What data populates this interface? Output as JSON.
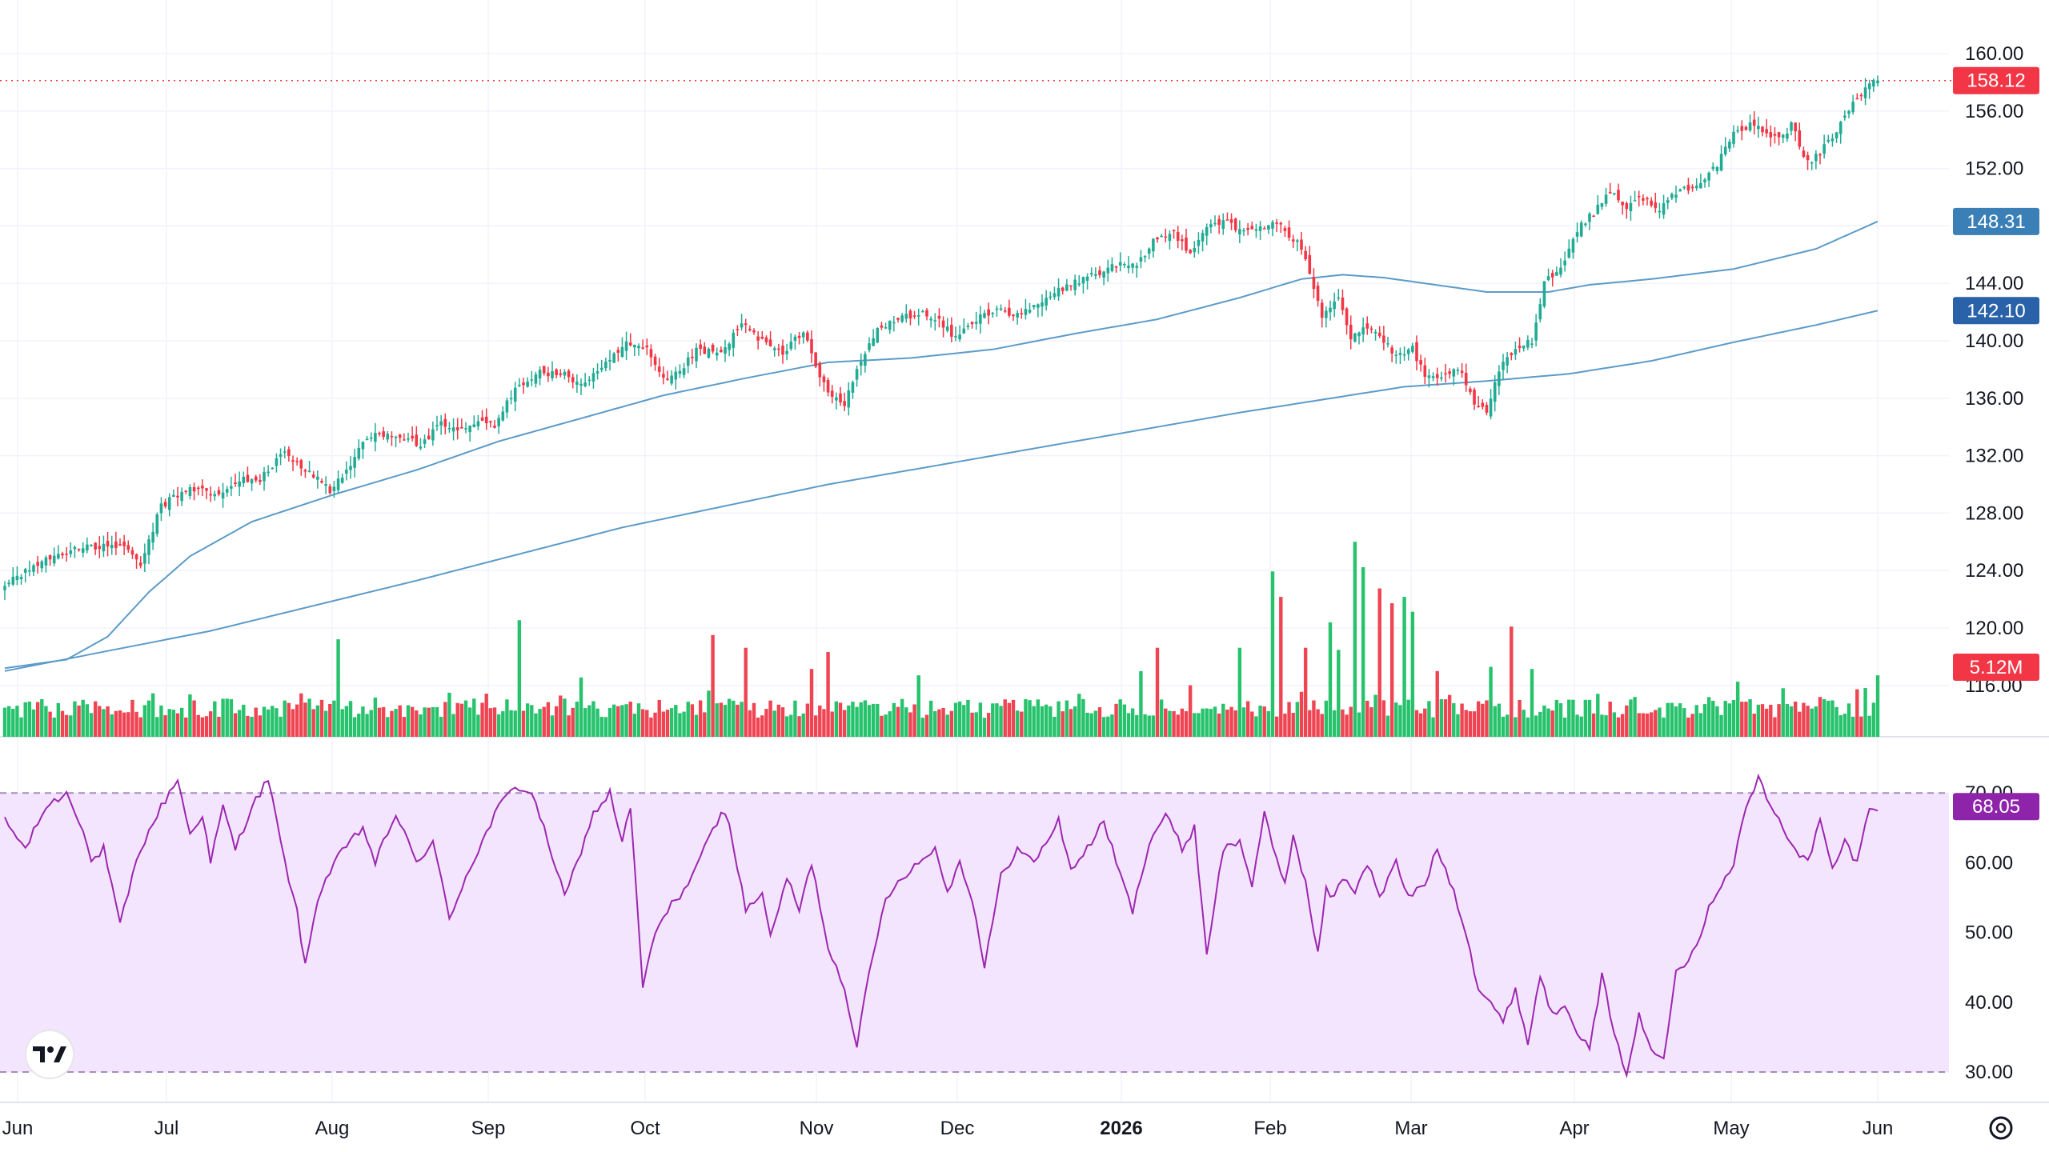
{
  "chart_data": {
    "type": "candlestick",
    "colors": {
      "up": "#22ab94",
      "down": "#f23645",
      "volume_up": "#26c26c",
      "volume_down": "#ef4452",
      "ma": "#5b9bc8",
      "ma_badge_50": "#3a7fb5",
      "ma_badge_200": "#2962a8",
      "price_badge": "#f23645",
      "rsi_line": "#9c27b0",
      "rsi_band": "#f3e5fd",
      "rsi_badge": "#8e24aa",
      "grid": "#f0f3fa",
      "axis_text": "#131722"
    },
    "price_axis": {
      "range": [
        114,
        162
      ],
      "ticks": [
        "160.00",
        "156.00",
        "152.00",
        "148.00",
        "144.00",
        "140.00",
        "136.00",
        "132.00",
        "128.00",
        "124.00",
        "120.00",
        "116.00"
      ]
    },
    "rsi_axis": {
      "range": [
        29,
        75
      ],
      "ticks": [
        "70.00",
        "60.00",
        "50.00",
        "40.00",
        "30.00"
      ],
      "band": [
        30,
        70
      ]
    },
    "time_axis": {
      "labels": [
        {
          "text": "Jun",
          "bold": false
        },
        {
          "text": "Jul",
          "bold": false
        },
        {
          "text": "Aug",
          "bold": false
        },
        {
          "text": "Sep",
          "bold": false
        },
        {
          "text": "Oct",
          "bold": false
        },
        {
          "text": "Nov",
          "bold": false
        },
        {
          "text": "Dec",
          "bold": false
        },
        {
          "text": "2026",
          "bold": true
        },
        {
          "text": "Feb",
          "bold": false
        },
        {
          "text": "Mar",
          "bold": false
        },
        {
          "text": "Apr",
          "bold": false
        },
        {
          "text": "May",
          "bold": false
        },
        {
          "text": "Jun",
          "bold": false
        }
      ]
    },
    "badges": {
      "last_price": "158.12",
      "ma_50": "148.31",
      "ma_200": "142.10",
      "volume": "5.12M",
      "rsi": "68.05"
    },
    "anchors": [
      [
        0,
        123
      ],
      [
        8,
        124.5
      ],
      [
        16,
        125.5
      ],
      [
        22,
        125.6
      ],
      [
        28,
        125.8
      ],
      [
        33,
        124.4
      ],
      [
        38,
        128.5
      ],
      [
        45,
        129.8
      ],
      [
        52,
        129.2
      ],
      [
        58,
        130.4
      ],
      [
        62,
        130.3
      ],
      [
        68,
        132.3
      ],
      [
        73,
        131.0
      ],
      [
        77,
        130.2
      ],
      [
        79,
        129.6
      ],
      [
        83,
        130.8
      ],
      [
        87,
        133.0
      ],
      [
        91,
        133.6
      ],
      [
        96,
        133.4
      ],
      [
        101,
        132.7
      ],
      [
        106,
        134.2
      ],
      [
        110,
        133.6
      ],
      [
        115,
        134.4
      ],
      [
        119,
        134.0
      ],
      [
        124,
        136.8
      ],
      [
        130,
        137.8
      ],
      [
        136,
        137.6
      ],
      [
        140,
        137.0
      ],
      [
        145,
        138.0
      ],
      [
        151,
        139.8
      ],
      [
        156,
        139.3
      ],
      [
        160,
        137.2
      ],
      [
        163,
        137.6
      ],
      [
        168,
        139.3
      ],
      [
        174,
        139.1
      ],
      [
        179,
        141.2
      ],
      [
        184,
        140.0
      ],
      [
        189,
        139.0
      ],
      [
        194,
        140.8
      ],
      [
        197,
        138.2
      ],
      [
        201,
        136.0
      ],
      [
        204,
        135.5
      ],
      [
        207,
        138.0
      ],
      [
        212,
        140.8
      ],
      [
        217,
        141.5
      ],
      [
        222,
        142.0
      ],
      [
        227,
        141.3
      ],
      [
        231,
        140.2
      ],
      [
        236,
        141.5
      ],
      [
        241,
        142.3
      ],
      [
        246,
        141.7
      ],
      [
        251,
        142.5
      ],
      [
        256,
        143.5
      ],
      [
        261,
        144.2
      ],
      [
        266,
        144.8
      ],
      [
        271,
        145.3
      ],
      [
        275,
        145.1
      ],
      [
        279,
        147.0
      ],
      [
        284,
        147.5
      ],
      [
        288,
        146.2
      ],
      [
        292,
        148.0
      ],
      [
        296,
        148.4
      ],
      [
        300,
        147.6
      ],
      [
        304,
        147.8
      ],
      [
        309,
        148.3
      ],
      [
        312,
        147.2
      ],
      [
        314,
        146.8
      ],
      [
        317,
        144.8
      ],
      [
        320,
        141.8
      ],
      [
        324,
        143.2
      ],
      [
        327,
        140.2
      ],
      [
        330,
        141.0
      ],
      [
        334,
        140.4
      ],
      [
        338,
        138.8
      ],
      [
        342,
        139.5
      ],
      [
        345,
        137.4
      ],
      [
        349,
        137.3
      ],
      [
        353,
        138.2
      ],
      [
        357,
        135.5
      ],
      [
        360,
        135.1
      ],
      [
        363,
        137.9
      ],
      [
        367,
        139.5
      ],
      [
        371,
        140.0
      ],
      [
        374,
        144.2
      ],
      [
        378,
        145.0
      ],
      [
        382,
        147.8
      ],
      [
        386,
        148.9
      ],
      [
        390,
        150.5
      ],
      [
        394,
        149.3
      ],
      [
        398,
        150.0
      ],
      [
        402,
        149.0
      ],
      [
        405,
        150.2
      ],
      [
        409,
        150.7
      ],
      [
        413,
        151.3
      ],
      [
        416,
        152.3
      ],
      [
        420,
        154.3
      ],
      [
        424,
        155.0
      ],
      [
        428,
        154.6
      ],
      [
        431,
        154.0
      ],
      [
        434,
        155.0
      ],
      [
        437,
        153.0
      ],
      [
        439,
        152.6
      ],
      [
        443,
        153.8
      ],
      [
        446,
        155.2
      ],
      [
        449,
        156.6
      ],
      [
        452,
        157.5
      ],
      [
        455,
        158.12
      ]
    ],
    "ma_50": [
      [
        0,
        117.2
      ],
      [
        15,
        117.8
      ],
      [
        25,
        119.4
      ],
      [
        35,
        122.5
      ],
      [
        45,
        125.0
      ],
      [
        60,
        127.4
      ],
      [
        80,
        129.3
      ],
      [
        100,
        131.0
      ],
      [
        120,
        133.0
      ],
      [
        140,
        134.6
      ],
      [
        160,
        136.2
      ],
      [
        180,
        137.4
      ],
      [
        200,
        138.5
      ],
      [
        220,
        138.8
      ],
      [
        240,
        139.4
      ],
      [
        260,
        140.5
      ],
      [
        280,
        141.5
      ],
      [
        300,
        143.0
      ],
      [
        315,
        144.3
      ],
      [
        325,
        144.6
      ],
      [
        335,
        144.4
      ],
      [
        345,
        144.0
      ],
      [
        360,
        143.4
      ],
      [
        375,
        143.4
      ],
      [
        385,
        143.9
      ],
      [
        400,
        144.3
      ],
      [
        420,
        145.0
      ],
      [
        440,
        146.4
      ],
      [
        455,
        148.31
      ]
    ],
    "ma_200": [
      [
        0,
        117.0
      ],
      [
        50,
        119.8
      ],
      [
        100,
        123.3
      ],
      [
        150,
        127.0
      ],
      [
        200,
        130.0
      ],
      [
        250,
        132.5
      ],
      [
        300,
        135.0
      ],
      [
        340,
        136.8
      ],
      [
        360,
        137.2
      ],
      [
        380,
        137.7
      ],
      [
        400,
        138.6
      ],
      [
        420,
        139.9
      ],
      [
        440,
        141.1
      ],
      [
        455,
        142.1
      ]
    ],
    "volume_spikes": [
      [
        81,
        4.6
      ],
      [
        125,
        5.5
      ],
      [
        140,
        2.8
      ],
      [
        172,
        4.8
      ],
      [
        180,
        4.2
      ],
      [
        196,
        3.2
      ],
      [
        200,
        4.0
      ],
      [
        222,
        2.9
      ],
      [
        276,
        3.1
      ],
      [
        280,
        4.2
      ],
      [
        300,
        4.2
      ],
      [
        308,
        7.8
      ],
      [
        310,
        6.6
      ],
      [
        316,
        4.2
      ],
      [
        322,
        5.4
      ],
      [
        324,
        4.1
      ],
      [
        328,
        9.2
      ],
      [
        330,
        8.0
      ],
      [
        334,
        7.0
      ],
      [
        337,
        6.3
      ],
      [
        340,
        6.6
      ],
      [
        342,
        5.9
      ],
      [
        348,
        3.1
      ],
      [
        361,
        3.3
      ],
      [
        366,
        5.2
      ],
      [
        371,
        3.2
      ],
      [
        421,
        2.6
      ],
      [
        443,
        1.7
      ],
      [
        452,
        2.3
      ],
      [
        455,
        2.9
      ]
    ],
    "rsi_anchors": [
      [
        0,
        66
      ],
      [
        5,
        62
      ],
      [
        10,
        68
      ],
      [
        15,
        70
      ],
      [
        19,
        65
      ],
      [
        21,
        60
      ],
      [
        24,
        62
      ],
      [
        28,
        51
      ],
      [
        31,
        58
      ],
      [
        33,
        62
      ],
      [
        38,
        68
      ],
      [
        42,
        72
      ],
      [
        45,
        64
      ],
      [
        48,
        67
      ],
      [
        50,
        60
      ],
      [
        53,
        68
      ],
      [
        56,
        62
      ],
      [
        60,
        68
      ],
      [
        64,
        72
      ],
      [
        68,
        60
      ],
      [
        71,
        53
      ],
      [
        73,
        45
      ],
      [
        76,
        55
      ],
      [
        80,
        60
      ],
      [
        84,
        63
      ],
      [
        87,
        65
      ],
      [
        90,
        60
      ],
      [
        95,
        67
      ],
      [
        100,
        60
      ],
      [
        104,
        63
      ],
      [
        108,
        52
      ],
      [
        112,
        58
      ],
      [
        116,
        63
      ],
      [
        120,
        68
      ],
      [
        124,
        71
      ],
      [
        128,
        70
      ],
      [
        132,
        63
      ],
      [
        136,
        55
      ],
      [
        139,
        60
      ],
      [
        143,
        67
      ],
      [
        147,
        70
      ],
      [
        150,
        63
      ],
      [
        152,
        68
      ],
      [
        155,
        42
      ],
      [
        158,
        50
      ],
      [
        162,
        54
      ],
      [
        165,
        56
      ],
      [
        170,
        62
      ],
      [
        174,
        67
      ],
      [
        176,
        66
      ],
      [
        180,
        53
      ],
      [
        184,
        56
      ],
      [
        186,
        49
      ],
      [
        190,
        58
      ],
      [
        193,
        53
      ],
      [
        196,
        60
      ],
      [
        200,
        48
      ],
      [
        204,
        42
      ],
      [
        207,
        34
      ],
      [
        210,
        44
      ],
      [
        214,
        55
      ],
      [
        218,
        58
      ],
      [
        222,
        60
      ],
      [
        226,
        62
      ],
      [
        229,
        56
      ],
      [
        232,
        60
      ],
      [
        235,
        55
      ],
      [
        238,
        45
      ],
      [
        242,
        58
      ],
      [
        246,
        62
      ],
      [
        250,
        60
      ],
      [
        253,
        63
      ],
      [
        256,
        66
      ],
      [
        259,
        59
      ],
      [
        263,
        62
      ],
      [
        267,
        66
      ],
      [
        270,
        60
      ],
      [
        274,
        53
      ],
      [
        278,
        63
      ],
      [
        282,
        67
      ],
      [
        286,
        62
      ],
      [
        289,
        65
      ],
      [
        292,
        47
      ],
      [
        296,
        62
      ],
      [
        300,
        63
      ],
      [
        303,
        57
      ],
      [
        306,
        67
      ],
      [
        308,
        62
      ],
      [
        311,
        57
      ],
      [
        313,
        64
      ],
      [
        316,
        57
      ],
      [
        319,
        47
      ],
      [
        321,
        56
      ],
      [
        323,
        55
      ],
      [
        325,
        58
      ],
      [
        328,
        56
      ],
      [
        331,
        60
      ],
      [
        334,
        55
      ],
      [
        338,
        60
      ],
      [
        341,
        55
      ],
      [
        345,
        57
      ],
      [
        348,
        62
      ],
      [
        352,
        56
      ],
      [
        355,
        50
      ],
      [
        358,
        42
      ],
      [
        361,
        40
      ],
      [
        364,
        37
      ],
      [
        367,
        42
      ],
      [
        370,
        34
      ],
      [
        373,
        44
      ],
      [
        376,
        38
      ],
      [
        379,
        40
      ],
      [
        382,
        36
      ],
      [
        385,
        33
      ],
      [
        388,
        44
      ],
      [
        391,
        35
      ],
      [
        394,
        30
      ],
      [
        397,
        38
      ],
      [
        400,
        33
      ],
      [
        403,
        32
      ],
      [
        406,
        45
      ],
      [
        409,
        46
      ],
      [
        412,
        50
      ],
      [
        415,
        55
      ],
      [
        418,
        58
      ],
      [
        420,
        60
      ],
      [
        423,
        68
      ],
      [
        426,
        72
      ],
      [
        429,
        68
      ],
      [
        432,
        65
      ],
      [
        435,
        62
      ],
      [
        438,
        60
      ],
      [
        441,
        66
      ],
      [
        444,
        59
      ],
      [
        447,
        63
      ],
      [
        450,
        60
      ],
      [
        453,
        68
      ],
      [
        455,
        68.05
      ]
    ],
    "n_bars": 456
  }
}
